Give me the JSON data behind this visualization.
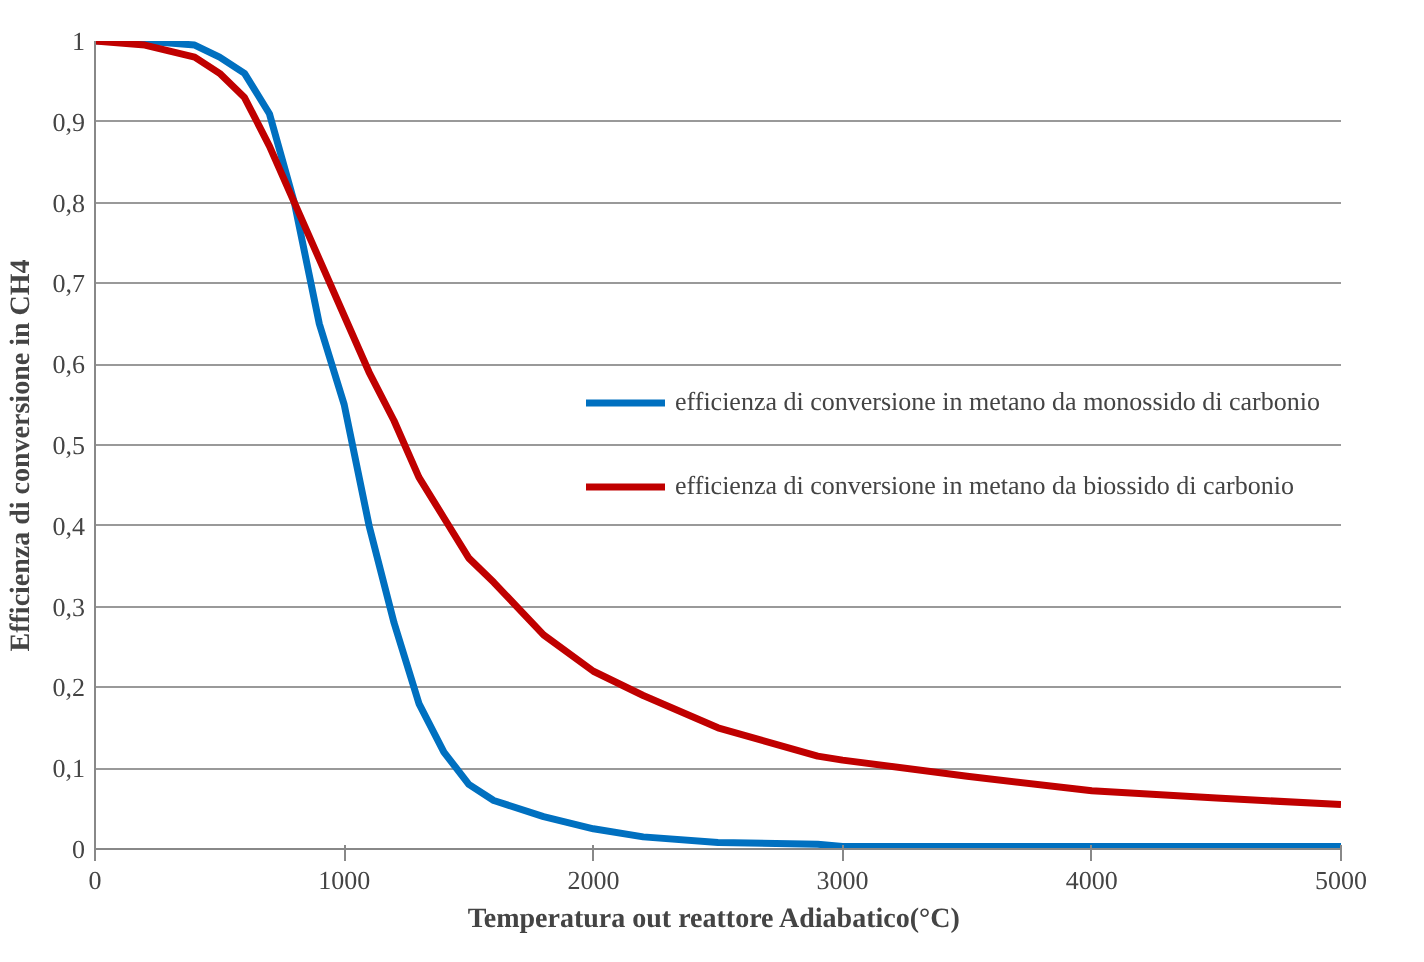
{
  "chart_data": {
    "type": "line",
    "xlabel": "Temperatura  out reattore Adiabatico(°C)",
    "ylabel": "Efficienza  di  conversione  in CH4",
    "x": [
      0,
      200,
      400,
      500,
      600,
      700,
      800,
      900,
      1000,
      1100,
      1200,
      1300,
      1400,
      1500,
      1600,
      1800,
      2000,
      2200,
      2500,
      2900,
      3000,
      3500,
      4000,
      4500,
      5000
    ],
    "series": [
      {
        "name": "efficienza di conversione in metano da monossido di carbonio",
        "color": "#0070c0",
        "values": [
          1,
          1,
          0.995,
          0.98,
          0.96,
          0.91,
          0.8,
          0.65,
          0.55,
          0.4,
          0.28,
          0.18,
          0.12,
          0.08,
          0.06,
          0.04,
          0.025,
          0.015,
          0.008,
          0.006,
          0.003,
          0.003,
          0.003,
          0.003,
          0.003
        ]
      },
      {
        "name": "efficienza di conversione in metano da biossido di carbonio",
        "color": "#c00000",
        "values": [
          1,
          0.995,
          0.98,
          0.96,
          0.93,
          0.87,
          0.8,
          0.73,
          0.66,
          0.59,
          0.53,
          0.46,
          0.41,
          0.36,
          0.33,
          0.265,
          0.22,
          0.19,
          0.15,
          0.115,
          0.11,
          0.09,
          0.072,
          0.063,
          0.055
        ]
      }
    ],
    "xlim": [
      0,
      5000
    ],
    "xticks": [
      0,
      1000,
      2000,
      3000,
      4000,
      5000
    ],
    "ylim": [
      0,
      1
    ],
    "yticks": [
      0,
      {
        "value": 0.1,
        "label": "0,1"
      },
      {
        "value": 0.2,
        "label": "0,2"
      },
      {
        "value": 0.3,
        "label": "0,3"
      },
      {
        "value": 0.4,
        "label": "0,4"
      },
      {
        "value": 0.5,
        "label": "0,5"
      },
      {
        "value": 0.6,
        "label": "0,6"
      },
      {
        "value": 0.7,
        "label": "0,7"
      },
      {
        "value": 0.8,
        "label": "0,8"
      },
      {
        "value": 0.9,
        "label": "0,9"
      },
      1
    ],
    "grid": "y",
    "legend": "right",
    "marker": "none",
    "line_style": "solid"
  }
}
